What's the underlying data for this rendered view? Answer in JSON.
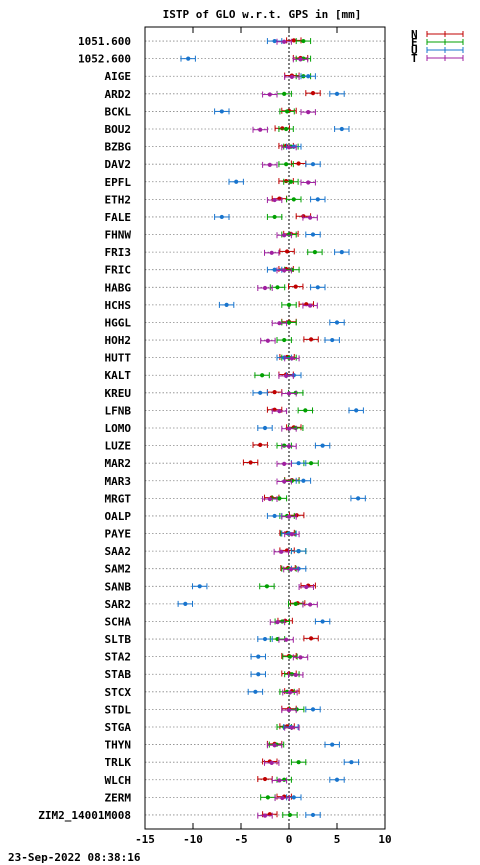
{
  "chart_data": {
    "type": "errorbar",
    "title": "ISTP of GLO w.r.t. GPS in [mm]",
    "xlim": [
      -15,
      10
    ],
    "x_ticks": [
      -15,
      -10,
      -5,
      0,
      5,
      10
    ],
    "grid": "horizontal dotted",
    "zero_line": "dotted vertical at x = 0",
    "legend_position": "top-right outside",
    "series": [
      {
        "name": "N",
        "color": "#c00000"
      },
      {
        "name": "E",
        "color": "#00a000"
      },
      {
        "name": "U",
        "color": "#1874cd"
      },
      {
        "name": "T",
        "color": "#a020a0"
      }
    ],
    "rows": [
      {
        "site": "1051.600",
        "N": 0.5,
        "E": 1.5,
        "U": -1.5,
        "T": -0.5
      },
      {
        "site": "1052.600",
        "N": 1.2,
        "E": 1.5,
        "U": -10.5,
        "T": 1.2
      },
      {
        "site": "AIGE",
        "N": 0.3,
        "E": 1.5,
        "U": 2.0,
        "T": 0.3
      },
      {
        "site": "ARD2",
        "N": 2.5,
        "E": -0.5,
        "U": 5.0,
        "T": -2.0
      },
      {
        "site": "BCKL",
        "N": 0.0,
        "E": -0.2,
        "U": -7.0,
        "T": 2.0
      },
      {
        "site": "BOU2",
        "N": -0.7,
        "E": -0.3,
        "U": 5.5,
        "T": -3.0
      },
      {
        "site": "BZBG",
        "N": -0.3,
        "E": 0.2,
        "U": 0.5,
        "T": 0.0
      },
      {
        "site": "DAV2",
        "N": 1.0,
        "E": -0.3,
        "U": 2.5,
        "T": -2.0
      },
      {
        "site": "EPFL",
        "N": -0.3,
        "E": 0.2,
        "U": -5.5,
        "T": 2.0
      },
      {
        "site": "ETH2",
        "N": -1.0,
        "E": 0.5,
        "U": 3.0,
        "T": -1.5
      },
      {
        "site": "FALE",
        "N": 1.5,
        "E": -1.5,
        "U": -7.0,
        "T": 2.2
      },
      {
        "site": "FHNW",
        "N": 0.2,
        "E": 0.0,
        "U": 2.5,
        "T": -0.5
      },
      {
        "site": "FRI3",
        "N": -0.2,
        "E": 2.7,
        "U": 5.5,
        "T": -1.8
      },
      {
        "site": "FRIC",
        "N": -0.3,
        "E": 0.3,
        "U": -1.5,
        "T": -0.5
      },
      {
        "site": "HABG",
        "N": 0.7,
        "E": -1.2,
        "U": 3.0,
        "T": -2.5
      },
      {
        "site": "HCHS",
        "N": 1.8,
        "E": 0.0,
        "U": -6.5,
        "T": 2.2
      },
      {
        "site": "HGGL",
        "N": 0.0,
        "E": 0.0,
        "U": 5.0,
        "T": -1.0
      },
      {
        "site": "HOH2",
        "N": 2.3,
        "E": -0.5,
        "U": 4.5,
        "T": -2.2
      },
      {
        "site": "HUTT",
        "N": -0.2,
        "E": 0.0,
        "U": -0.5,
        "T": 0.3
      },
      {
        "site": "KALT",
        "N": -0.3,
        "E": -2.8,
        "U": 0.5,
        "T": -0.3
      },
      {
        "site": "KREU",
        "N": -1.5,
        "E": 0.7,
        "U": -3.0,
        "T": 0.0
      },
      {
        "site": "LFNB",
        "N": -1.5,
        "E": 1.7,
        "U": 7.0,
        "T": -1.0
      },
      {
        "site": "LOMO",
        "N": 0.5,
        "E": 0.7,
        "U": -2.5,
        "T": 0.0
      },
      {
        "site": "LUZE",
        "N": -3.0,
        "E": -0.5,
        "U": 3.5,
        "T": 0.0
      },
      {
        "site": "MAR2",
        "N": -4.0,
        "E": 2.3,
        "U": 1.0,
        "T": -0.5
      },
      {
        "site": "MAR3",
        "N": 0.3,
        "E": 0.3,
        "U": 1.5,
        "T": -0.5
      },
      {
        "site": "MRGT",
        "N": -1.8,
        "E": -1.0,
        "U": 7.2,
        "T": -2.0
      },
      {
        "site": "OALP",
        "N": 0.8,
        "E": -0.2,
        "U": -1.5,
        "T": 0.0
      },
      {
        "site": "PAYE",
        "N": -0.2,
        "E": -0.1,
        "U": 0.0,
        "T": 0.3
      },
      {
        "site": "SAA2",
        "N": -0.2,
        "E": 1.0,
        "U": 1.0,
        "T": -0.8
      },
      {
        "site": "SAM2",
        "N": -0.1,
        "E": 0.0,
        "U": 1.0,
        "T": 0.2
      },
      {
        "site": "SANB",
        "N": 2.0,
        "E": -2.3,
        "U": -9.3,
        "T": 1.8
      },
      {
        "site": "SAR2",
        "N": 0.9,
        "E": 0.7,
        "U": -10.8,
        "T": 2.2
      },
      {
        "site": "SCHA",
        "N": -0.4,
        "E": -0.7,
        "U": 3.5,
        "T": -1.2
      },
      {
        "site": "SLTB",
        "N": 2.3,
        "E": -1.2,
        "U": -2.5,
        "T": -0.3
      },
      {
        "site": "STA2",
        "N": 0.0,
        "E": 0.1,
        "U": -3.2,
        "T": 1.2
      },
      {
        "site": "STAB",
        "N": 0.0,
        "E": 0.3,
        "U": -3.2,
        "T": 0.7
      },
      {
        "site": "STCX",
        "N": 0.3,
        "E": -0.2,
        "U": -3.5,
        "T": 0.1
      },
      {
        "site": "STDL",
        "N": 0.0,
        "E": 0.8,
        "U": 2.5,
        "T": 0.0
      },
      {
        "site": "STGA",
        "N": -0.2,
        "E": -0.5,
        "U": 0.2,
        "T": 0.3
      },
      {
        "site": "THYN",
        "N": -1.5,
        "E": -1.3,
        "U": 4.5,
        "T": -1.5
      },
      {
        "site": "TRLK",
        "N": -2.0,
        "E": 1.0,
        "U": 6.5,
        "T": -1.8
      },
      {
        "site": "WLCH",
        "N": -2.5,
        "E": -0.5,
        "U": 5.0,
        "T": -1.0
      },
      {
        "site": "ZERM",
        "N": -0.5,
        "E": -2.2,
        "U": 0.5,
        "T": -0.7
      },
      {
        "site": "ZIM2_14001M008",
        "N": -2.0,
        "E": 0.1,
        "U": 2.5,
        "T": -2.5
      }
    ],
    "error_bar_halfwidth_mm": 0.75
  },
  "footer": {
    "timestamp": "23-Sep-2022 08:38:16"
  }
}
